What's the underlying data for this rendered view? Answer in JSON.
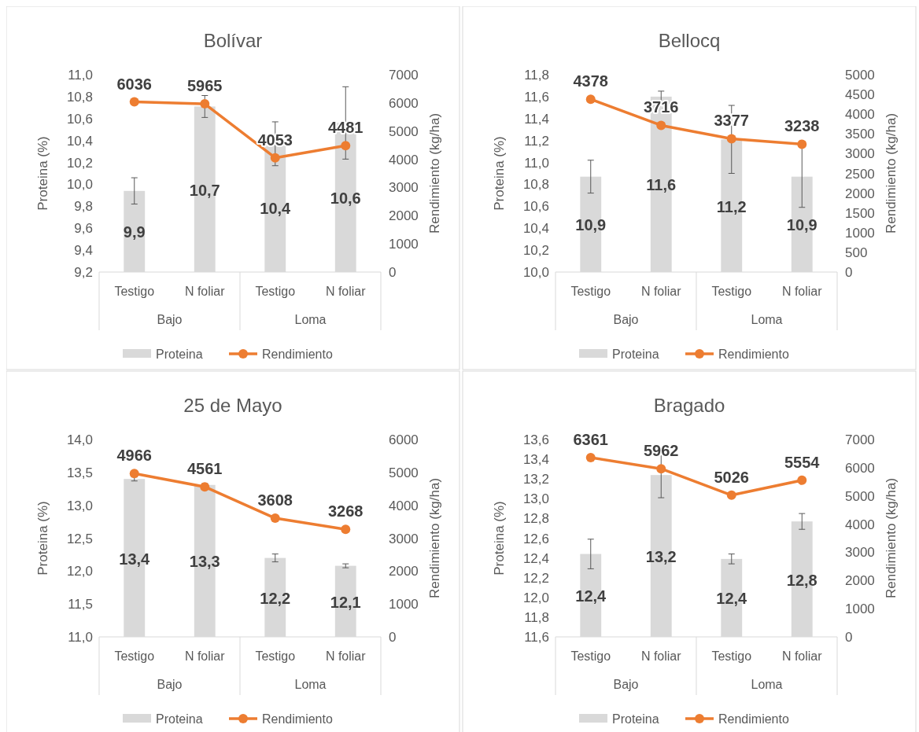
{
  "chart_data": [
    {
      "type": "bar",
      "title": "Bolívar",
      "categories": [
        "Testigo",
        "N foliar",
        "Testigo",
        "N foliar"
      ],
      "annotations": [
        "Bajo",
        "Loma"
      ],
      "ylabel": "Proteina (%)",
      "y2label": "Rendimiento (kg/ha)",
      "ylim": [
        9.2,
        11.0
      ],
      "yticks": [
        {
          "value": 9.2,
          "label": "9,2"
        },
        {
          "value": 9.4,
          "label": "9,4"
        },
        {
          "value": 9.6,
          "label": "9,6"
        },
        {
          "value": 9.8,
          "label": "9,8"
        },
        {
          "value": 10.0,
          "label": "10,0"
        },
        {
          "value": 10.2,
          "label": "10,2"
        },
        {
          "value": 10.4,
          "label": "10,4"
        },
        {
          "value": 10.6,
          "label": "10,6"
        },
        {
          "value": 10.8,
          "label": "10,8"
        },
        {
          "value": 11.0,
          "label": "11,0"
        }
      ],
      "y2lim": [
        0,
        7000
      ],
      "y2ticks": [
        0,
        1000,
        2000,
        3000,
        4000,
        5000,
        6000,
        7000
      ],
      "legend": "bottom",
      "marker": "circle",
      "series": [
        {
          "name": "Proteina",
          "color": "#d9d9d9",
          "values": [
            9.94,
            10.71,
            10.37,
            10.56
          ],
          "errors": [
            0.12,
            0.1,
            0.2,
            0.33
          ],
          "value_labels": [
            "9,9",
            "10,7",
            "10,4",
            "10,6"
          ]
        },
        {
          "name": "Rendimiento",
          "type": "line",
          "axis": "y2",
          "color": "#ed7d31",
          "values": [
            6036,
            5965,
            4053,
            4481
          ],
          "value_labels": [
            "6036",
            "5965",
            "4053",
            "4481"
          ]
        }
      ]
    },
    {
      "type": "bar",
      "title": "Bellocq",
      "categories": [
        "Testigo",
        "N foliar",
        "Testigo",
        "N foliar"
      ],
      "annotations": [
        "Bajo",
        "Loma"
      ],
      "ylabel": "Proteina (%)",
      "y2label": "Rendimiento (kg/ha)",
      "ylim": [
        10.0,
        11.8
      ],
      "yticks": [
        {
          "value": 10.0,
          "label": "10,0"
        },
        {
          "value": 10.2,
          "label": "10,2"
        },
        {
          "value": 10.4,
          "label": "10,4"
        },
        {
          "value": 10.6,
          "label": "10,6"
        },
        {
          "value": 10.8,
          "label": "10,8"
        },
        {
          "value": 11.0,
          "label": "11,0"
        },
        {
          "value": 11.2,
          "label": "11,2"
        },
        {
          "value": 11.4,
          "label": "11,4"
        },
        {
          "value": 11.6,
          "label": "11,6"
        },
        {
          "value": 11.8,
          "label": "11,8"
        }
      ],
      "y2lim": [
        0,
        5000
      ],
      "y2ticks": [
        0,
        500,
        1000,
        1500,
        2000,
        2500,
        3000,
        3500,
        4000,
        4500,
        5000
      ],
      "legend": "bottom",
      "marker": "circle",
      "series": [
        {
          "name": "Proteina",
          "color": "#d9d9d9",
          "values": [
            10.87,
            11.6,
            11.21,
            10.87
          ],
          "errors": [
            0.15,
            0.05,
            0.31,
            0.28
          ],
          "value_labels": [
            "10,9",
            "11,6",
            "11,2",
            "10,9"
          ]
        },
        {
          "name": "Rendimiento",
          "type": "line",
          "axis": "y2",
          "color": "#ed7d31",
          "values": [
            4378,
            3716,
            3377,
            3238
          ],
          "value_labels": [
            "4378",
            "3716",
            "3377",
            "3238"
          ]
        }
      ]
    },
    {
      "type": "bar",
      "title": "25 de Mayo",
      "categories": [
        "Testigo",
        "N foliar",
        "Testigo",
        "N foliar"
      ],
      "annotations": [
        "Bajo",
        "Loma"
      ],
      "ylabel": "Proteina (%)",
      "y2label": "Rendimiento (kg/ha)",
      "ylim": [
        11.0,
        14.0
      ],
      "yticks": [
        {
          "value": 11.0,
          "label": "11,0"
        },
        {
          "value": 11.5,
          "label": "11,5"
        },
        {
          "value": 12.0,
          "label": "12,0"
        },
        {
          "value": 12.5,
          "label": "12,5"
        },
        {
          "value": 13.0,
          "label": "13,0"
        },
        {
          "value": 13.5,
          "label": "13,5"
        },
        {
          "value": 14.0,
          "label": "14,0"
        }
      ],
      "y2lim": [
        0,
        6000
      ],
      "y2ticks": [
        0,
        1000,
        2000,
        3000,
        4000,
        5000,
        6000
      ],
      "legend": "bottom",
      "marker": "circle",
      "series": [
        {
          "name": "Proteina",
          "color": "#d9d9d9",
          "values": [
            13.4,
            13.31,
            12.2,
            12.08
          ],
          "errors": [
            0.03,
            0.02,
            0.06,
            0.03
          ],
          "value_labels": [
            "13,4",
            "13,3",
            "12,2",
            "12,1"
          ]
        },
        {
          "name": "Rendimiento",
          "type": "line",
          "axis": "y2",
          "color": "#ed7d31",
          "values": [
            4966,
            4561,
            3608,
            3268
          ],
          "value_labels": [
            "4966",
            "4561",
            "3608",
            "3268"
          ]
        }
      ]
    },
    {
      "type": "bar",
      "title": "Bragado",
      "categories": [
        "Testigo",
        "N foliar",
        "Testigo",
        "N foliar"
      ],
      "annotations": [
        "Bajo",
        "Loma"
      ],
      "ylabel": "Proteina (%)",
      "y2label": "Rendimiento (kg/ha)",
      "ylim": [
        11.6,
        13.6
      ],
      "yticks": [
        {
          "value": 11.6,
          "label": "11,6"
        },
        {
          "value": 11.8,
          "label": "11,8"
        },
        {
          "value": 12.0,
          "label": "12,0"
        },
        {
          "value": 12.2,
          "label": "12,2"
        },
        {
          "value": 12.4,
          "label": "12,4"
        },
        {
          "value": 12.6,
          "label": "12,6"
        },
        {
          "value": 12.8,
          "label": "12,8"
        },
        {
          "value": 13.0,
          "label": "13,0"
        },
        {
          "value": 13.2,
          "label": "13,2"
        },
        {
          "value": 13.4,
          "label": "13,4"
        },
        {
          "value": 13.6,
          "label": "13,6"
        }
      ],
      "y2lim": [
        0,
        7000
      ],
      "y2ticks": [
        0,
        1000,
        2000,
        3000,
        4000,
        5000,
        6000,
        7000
      ],
      "legend": "bottom",
      "marker": "circle",
      "series": [
        {
          "name": "Proteina",
          "color": "#d9d9d9",
          "values": [
            12.44,
            13.24,
            12.39,
            12.77
          ],
          "errors": [
            0.15,
            0.23,
            0.05,
            0.08
          ],
          "value_labels": [
            "12,4",
            "13,2",
            "12,4",
            "12,8"
          ]
        },
        {
          "name": "Rendimiento",
          "type": "line",
          "axis": "y2",
          "color": "#ed7d31",
          "values": [
            6361,
            5962,
            5026,
            5554
          ],
          "value_labels": [
            "6361",
            "5962",
            "5026",
            "5554"
          ]
        }
      ]
    }
  ]
}
